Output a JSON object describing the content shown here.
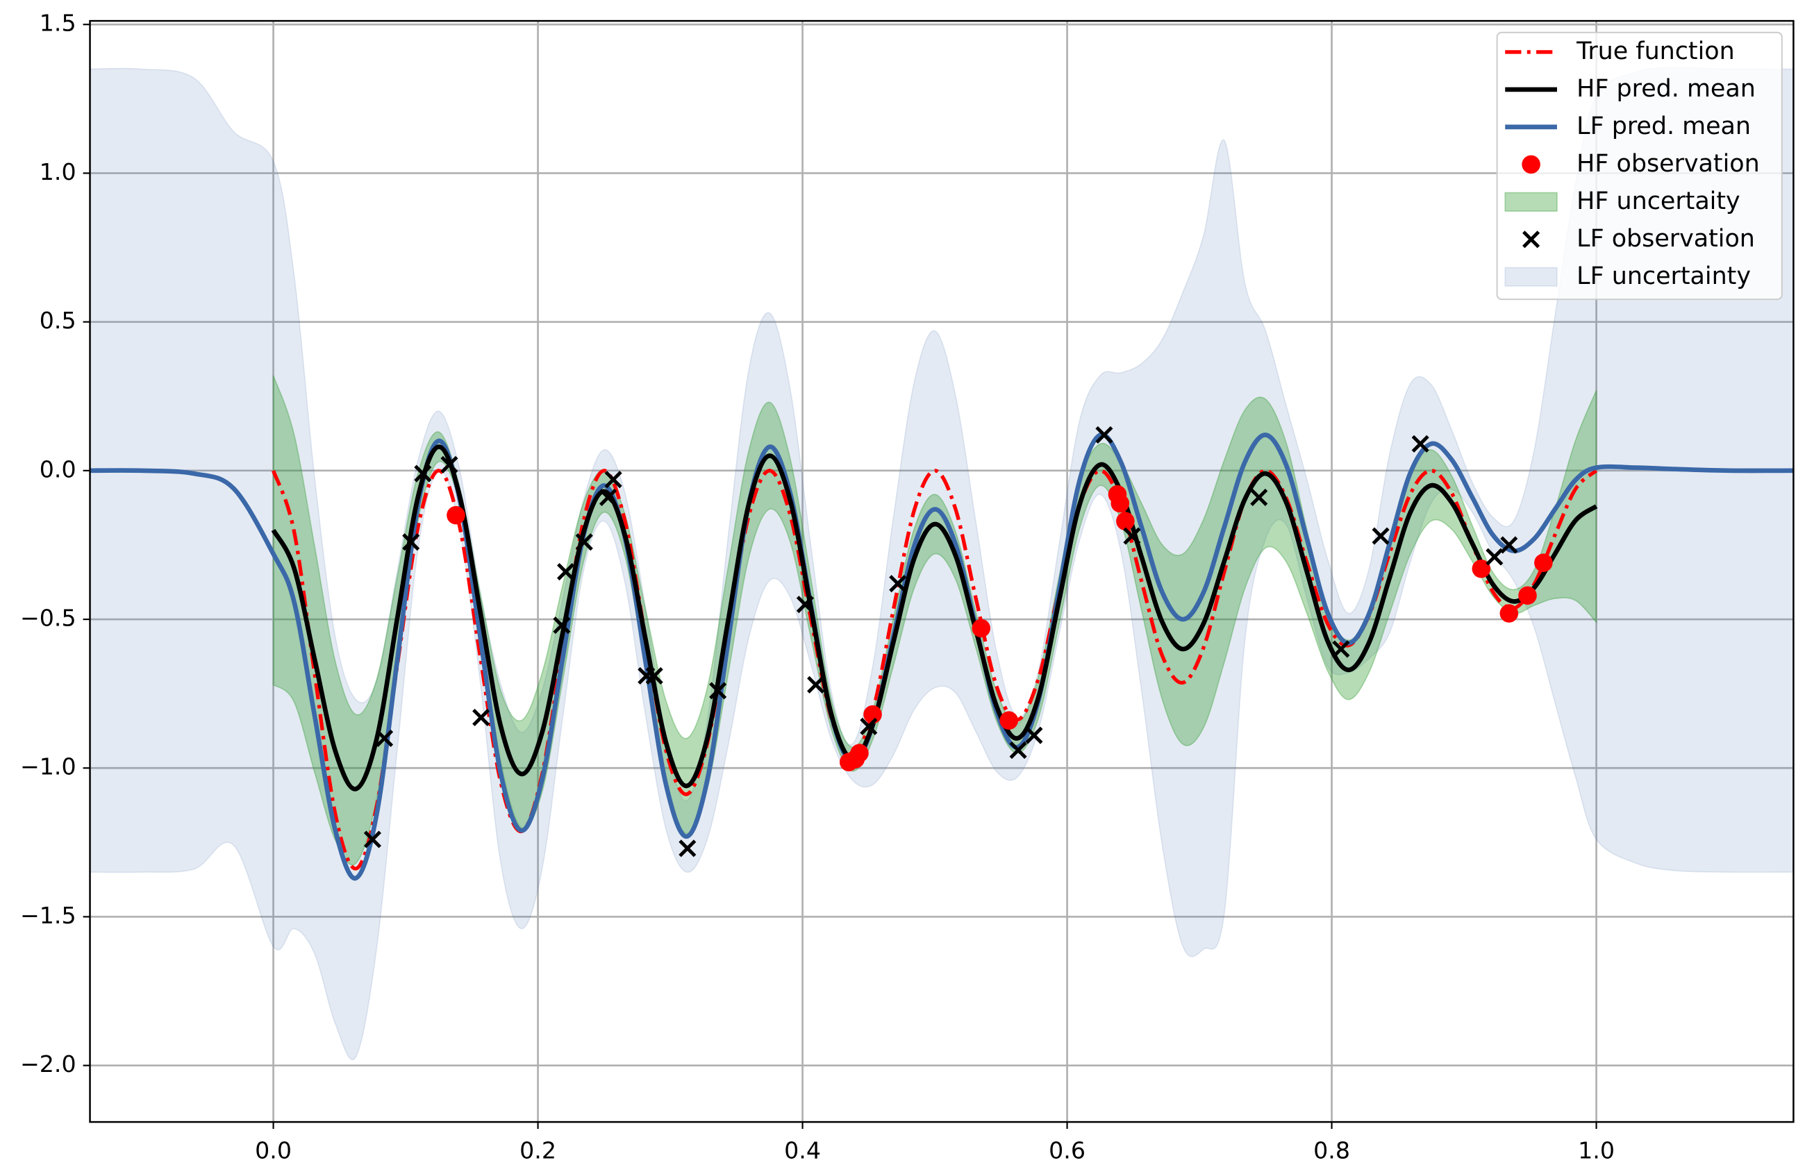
{
  "chart_data": {
    "type": "line",
    "xlim": [
      -0.1386,
      1.149
    ],
    "ylim": [
      -2.19,
      1.512
    ],
    "grid": true,
    "legend": "upper right",
    "xticks": [
      {
        "value": 0,
        "label": "0.0"
      },
      {
        "value": 0.2,
        "label": "0.2"
      },
      {
        "value": 0.4,
        "label": "0.4"
      },
      {
        "value": 0.6,
        "label": "0.6"
      },
      {
        "value": 0.8,
        "label": "0.8"
      },
      {
        "value": 1,
        "label": "1.0"
      }
    ],
    "yticks": [
      {
        "value": -2,
        "label": "−2.0"
      },
      {
        "value": -1.5,
        "label": "−1.5"
      },
      {
        "value": -1,
        "label": "−1.0"
      },
      {
        "value": -0.5,
        "label": "−0.5"
      },
      {
        "value": 0,
        "label": "0.0"
      },
      {
        "value": 0.5,
        "label": "0.5"
      },
      {
        "value": 1,
        "label": "1.0"
      },
      {
        "value": 1.5,
        "label": "1.5"
      }
    ],
    "x": [
      0,
      0.015625,
      0.03125,
      0.046875,
      0.0625,
      0.078125,
      0.09375,
      0.109375,
      0.125,
      0.140625,
      0.15625,
      0.171875,
      0.1875,
      0.203125,
      0.21875,
      0.234375,
      0.25,
      0.265625,
      0.28125,
      0.296875,
      0.3125,
      0.328125,
      0.34375,
      0.359375,
      0.375,
      0.390625,
      0.40625,
      0.421875,
      0.4375,
      0.453125,
      0.46875,
      0.484375,
      0.5,
      0.515625,
      0.53125,
      0.546875,
      0.5625,
      0.578125,
      0.59375,
      0.609375,
      0.625,
      0.640625,
      0.65625,
      0.671875,
      0.6875,
      0.703125,
      0.71875,
      0.734375,
      0.75,
      0.765625,
      0.78125,
      0.796875,
      0.8125,
      0.828125,
      0.84375,
      0.859375,
      0.875,
      0.890625,
      0.90625,
      0.921875,
      0.9375,
      0.953125,
      0.96875,
      0.984375,
      1
    ],
    "series": [
      {
        "name": "True function",
        "color": "#ff0000",
        "style": "dashdot",
        "values": [
          0,
          -0.203,
          -0.684,
          -1.155,
          -1.338,
          -1.128,
          -0.653,
          -0.189,
          0,
          -0.184,
          -0.622,
          -1.048,
          -1.213,
          -1.022,
          -0.591,
          -0.171,
          0,
          -0.166,
          -0.559,
          -0.942,
          -1.088,
          -0.915,
          -0.528,
          -0.152,
          0,
          -0.148,
          -0.497,
          -0.835,
          -0.963,
          -0.808,
          -0.466,
          -0.134,
          0,
          -0.129,
          -0.434,
          -0.728,
          -0.838,
          -0.702,
          -0.403,
          -0.116,
          0,
          -0.111,
          -0.372,
          -0.622,
          -0.713,
          -0.595,
          -0.341,
          -0.097,
          0,
          -0.093,
          -0.309,
          -0.515,
          -0.588,
          -0.488,
          -0.278,
          -0.079,
          0,
          -0.075,
          -0.247,
          -0.408,
          -0.463,
          -0.381,
          -0.216,
          -0.061,
          0
        ]
      },
      {
        "name": "HF pred. mean",
        "color": "#000000",
        "style": "line",
        "values": [
          -0.2,
          -0.327,
          -0.635,
          -0.943,
          -1.07,
          -0.902,
          -0.495,
          -0.088,
          0.08,
          -0.081,
          -0.47,
          -0.859,
          -1.02,
          -0.881,
          -0.545,
          -0.209,
          -0.07,
          -0.215,
          -0.565,
          -0.915,
          -1.06,
          -0.898,
          -0.505,
          -0.113,
          0.05,
          -0.099,
          -0.46,
          -0.821,
          -0.97,
          -0.854,
          -0.575,
          -0.296,
          -0.18,
          -0.285,
          -0.54,
          -0.795,
          -0.9,
          -0.765,
          -0.44,
          -0.115,
          0.02,
          -0.071,
          -0.29,
          -0.509,
          -0.6,
          -0.514,
          -0.305,
          -0.096,
          -0.01,
          -0.107,
          -0.34,
          -0.573,
          -0.67,
          -0.579,
          -0.36,
          -0.141,
          -0.05,
          -0.107,
          -0.245,
          -0.383,
          -0.44,
          -0.393,
          -0.28,
          -0.167,
          -0.12
        ]
      },
      {
        "name": "LF pred. mean",
        "color": "#3a68a8",
        "style": "line",
        "x": [
          -0.14,
          -0.1,
          -0.06,
          -0.03,
          0,
          0.015625,
          0.03125,
          0.046875,
          0.0625,
          0.078125,
          0.09375,
          0.109375,
          0.125,
          0.140625,
          0.15625,
          0.171875,
          0.1875,
          0.203125,
          0.21875,
          0.234375,
          0.25,
          0.265625,
          0.28125,
          0.296875,
          0.3125,
          0.328125,
          0.34375,
          0.359375,
          0.375,
          0.390625,
          0.40625,
          0.421875,
          0.4375,
          0.453125,
          0.46875,
          0.484375,
          0.5,
          0.515625,
          0.53125,
          0.546875,
          0.5625,
          0.578125,
          0.59375,
          0.609375,
          0.625,
          0.640625,
          0.65625,
          0.671875,
          0.6875,
          0.703125,
          0.71875,
          0.734375,
          0.75,
          0.765625,
          0.78125,
          0.796875,
          0.8125,
          0.828125,
          0.84375,
          0.859375,
          0.875,
          0.890625,
          0.90625,
          0.921875,
          0.9375,
          0.953125,
          0.96875,
          0.984375,
          1,
          1.03,
          1.06,
          1.1,
          1.15
        ],
        "values": [
          0,
          0,
          -0.01,
          -0.06,
          -0.28,
          -0.44,
          -0.825,
          -1.21,
          -1.37,
          -1.155,
          -0.635,
          -0.115,
          0.1,
          -0.092,
          -0.555,
          -1.018,
          -1.21,
          -1.04,
          -0.63,
          -0.22,
          -0.05,
          -0.223,
          -0.64,
          -1.057,
          -1.23,
          -1.038,
          -0.575,
          -0.112,
          0.08,
          -0.075,
          -0.45,
          -0.825,
          -0.98,
          -0.856,
          -0.555,
          -0.254,
          -0.13,
          -0.247,
          -0.53,
          -0.813,
          -0.93,
          -0.776,
          -0.405,
          -0.034,
          0.12,
          0.029,
          -0.19,
          -0.409,
          -0.5,
          -0.409,
          -0.19,
          0.029,
          0.12,
          0.018,
          -0.23,
          -0.478,
          -0.58,
          -0.482,
          -0.245,
          -0.008,
          0.09,
          0.037,
          -0.09,
          -0.217,
          -0.27,
          -0.229,
          -0.13,
          -0.031,
          0.01,
          0.01,
          0.005,
          0,
          0
        ]
      },
      {
        "name": "HF observation",
        "color": "#ff0000",
        "style": "dot",
        "x": [
          0.138,
          0.435,
          0.44,
          0.443,
          0.453,
          0.535,
          0.556,
          0.638,
          0.64,
          0.644,
          0.913,
          0.934,
          0.948,
          0.96
        ],
        "values": [
          -0.15,
          -0.98,
          -0.97,
          -0.95,
          -0.82,
          -0.53,
          -0.84,
          -0.08,
          -0.11,
          -0.17,
          -0.33,
          -0.48,
          -0.42,
          -0.31
        ]
      },
      {
        "name": "HF uncertaity",
        "color": "#2e9b2e",
        "alpha": 0.35,
        "style": "band",
        "upper": [
          0.32,
          0.123,
          -0.255,
          -0.643,
          -0.82,
          -0.702,
          -0.355,
          -0.008,
          0.13,
          -0.051,
          -0.41,
          -0.739,
          -0.84,
          -0.681,
          -0.385,
          -0.109,
          0,
          -0.145,
          -0.465,
          -0.775,
          -0.9,
          -0.728,
          -0.325,
          0.067,
          0.23,
          0.041,
          -0.36,
          -0.771,
          -0.93,
          -0.804,
          -0.495,
          -0.196,
          -0.08,
          -0.205,
          -0.48,
          -0.745,
          -0.85,
          -0.695,
          -0.36,
          -0.035,
          0.09,
          0.029,
          -0.11,
          -0.249,
          -0.28,
          -0.164,
          0.035,
          0.204,
          0.24,
          0.093,
          -0.2,
          -0.473,
          -0.57,
          -0.479,
          -0.24,
          -0.001,
          0.07,
          -0.017,
          -0.185,
          -0.343,
          -0.4,
          -0.333,
          -0.13,
          0.103,
          0.27
        ],
        "lower": [
          -0.72,
          -0.777,
          -1.015,
          -1.243,
          -1.32,
          -1.102,
          -0.635,
          -0.168,
          0.03,
          -0.111,
          -0.53,
          -0.979,
          -1.2,
          -1.081,
          -0.705,
          -0.309,
          -0.14,
          -0.285,
          -0.665,
          -1.055,
          -1.22,
          -1.068,
          -0.685,
          -0.293,
          -0.13,
          -0.239,
          -0.56,
          -0.871,
          -1.01,
          -0.904,
          -0.655,
          -0.396,
          -0.28,
          -0.365,
          -0.6,
          -0.845,
          -0.95,
          -0.835,
          -0.52,
          -0.195,
          -0.05,
          -0.171,
          -0.47,
          -0.769,
          -0.92,
          -0.864,
          -0.645,
          -0.396,
          -0.26,
          -0.307,
          -0.48,
          -0.673,
          -0.77,
          -0.679,
          -0.48,
          -0.281,
          -0.17,
          -0.197,
          -0.305,
          -0.423,
          -0.48,
          -0.453,
          -0.43,
          -0.437,
          -0.51
        ]
      },
      {
        "name": "LF observation",
        "color": "#000000",
        "style": "cross",
        "x": [
          0.075,
          0.084,
          0.104,
          0.113,
          0.133,
          0.157,
          0.218,
          0.221,
          0.235,
          0.253,
          0.257,
          0.282,
          0.288,
          0.313,
          0.336,
          0.402,
          0.41,
          0.45,
          0.472,
          0.563,
          0.575,
          0.628,
          0.649,
          0.745,
          0.807,
          0.837,
          0.867,
          0.923,
          0.934
        ],
        "values": [
          -1.24,
          -0.9,
          -0.24,
          -0.01,
          0.02,
          -0.83,
          -0.52,
          -0.34,
          -0.24,
          -0.09,
          -0.03,
          -0.69,
          -0.69,
          -1.27,
          -0.74,
          -0.45,
          -0.72,
          -0.86,
          -0.38,
          -0.94,
          -0.89,
          0.12,
          -0.22,
          -0.09,
          -0.6,
          -0.22,
          0.09,
          -0.29,
          -0.25
        ]
      },
      {
        "name": "LF uncertainty",
        "color": "#4c72b0",
        "alpha": 0.15,
        "style": "band",
        "x": [
          -0.14,
          -0.1,
          -0.06,
          -0.03,
          0,
          0.015625,
          0.03125,
          0.046875,
          0.0625,
          0.078125,
          0.09375,
          0.109375,
          0.125,
          0.140625,
          0.15625,
          0.171875,
          0.1875,
          0.203125,
          0.21875,
          0.234375,
          0.25,
          0.265625,
          0.28125,
          0.296875,
          0.3125,
          0.328125,
          0.34375,
          0.359375,
          0.375,
          0.390625,
          0.40625,
          0.421875,
          0.4375,
          0.453125,
          0.46875,
          0.484375,
          0.5,
          0.515625,
          0.53125,
          0.546875,
          0.5625,
          0.578125,
          0.59375,
          0.609375,
          0.625,
          0.640625,
          0.65625,
          0.671875,
          0.6875,
          0.703125,
          0.71875,
          0.734375,
          0.75,
          0.765625,
          0.78125,
          0.796875,
          0.8125,
          0.828125,
          0.84375,
          0.859375,
          0.875,
          0.890625,
          0.90625,
          0.921875,
          0.9375,
          0.953125,
          0.96875,
          0.984375,
          1,
          1.03,
          1.06,
          1.1,
          1.15
        ],
        "upper": [
          1.35,
          1.35,
          1.32,
          1.14,
          1.04,
          0.66,
          -0.025,
          -0.56,
          -0.77,
          -0.705,
          -0.335,
          0.035,
          0.2,
          0.008,
          -0.405,
          -0.718,
          -0.88,
          -0.74,
          -0.43,
          -0.1,
          0.07,
          -0.073,
          -0.46,
          -0.907,
          -1.11,
          -0.838,
          -0.225,
          0.338,
          0.53,
          0.275,
          -0.25,
          -0.745,
          -0.92,
          -0.656,
          -0.155,
          0.296,
          0.47,
          0.253,
          -0.18,
          -0.613,
          -0.83,
          -0.676,
          -0.255,
          0.166,
          0.32,
          0.329,
          0.36,
          0.441,
          0.6,
          0.791,
          1.11,
          0.629,
          0.47,
          0.218,
          -0.03,
          -0.298,
          -0.48,
          -0.332,
          0.055,
          0.292,
          0.29,
          0.137,
          -0.04,
          -0.157,
          -0.17,
          0.071,
          0.52,
          0.969,
          1.26,
          1.34,
          1.355,
          1.35,
          1.35
        ],
        "lower": [
          -1.35,
          -1.35,
          -1.34,
          -1.26,
          -1.6,
          -1.54,
          -1.625,
          -1.86,
          -1.97,
          -1.605,
          -0.935,
          -0.265,
          0,
          -0.192,
          -0.705,
          -1.318,
          -1.54,
          -1.34,
          -0.83,
          -0.34,
          -0.17,
          -0.373,
          -0.82,
          -1.207,
          -1.35,
          -1.238,
          -0.925,
          -0.562,
          -0.37,
          -0.425,
          -0.65,
          -0.905,
          -1.04,
          -1.056,
          -0.955,
          -0.804,
          -0.73,
          -0.747,
          -0.88,
          -1.013,
          -1.03,
          -0.876,
          -0.555,
          -0.234,
          -0.08,
          -0.271,
          -0.74,
          -1.259,
          -1.6,
          -1.609,
          -1.49,
          -0.571,
          -0.23,
          -0.182,
          -0.43,
          -0.658,
          -0.68,
          -0.632,
          -0.545,
          -0.308,
          -0.11,
          -0.063,
          -0.14,
          -0.277,
          -0.37,
          -0.529,
          -0.78,
          -1.031,
          -1.24,
          -1.32,
          -1.345,
          -1.35,
          -1.35
        ]
      }
    ]
  }
}
